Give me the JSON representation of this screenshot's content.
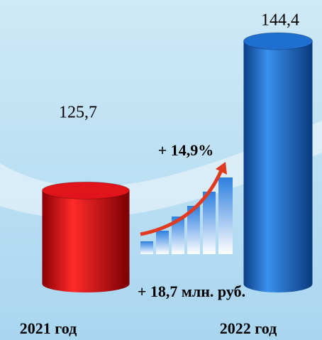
{
  "chart_data": {
    "type": "cylinder-bar",
    "categories": [
      "2021 год",
      "2022 год"
    ],
    "series": [
      {
        "colors": [
          "#e0141a",
          "#1e6fd0"
        ],
        "values": [
          125.7,
          144.4
        ],
        "value_labels": [
          "125,7",
          "144,4"
        ]
      }
    ],
    "ylim": [
      114,
      146
    ],
    "annotations": [
      "+ 14,9%",
      "+ 18,7 млн. руб."
    ]
  }
}
